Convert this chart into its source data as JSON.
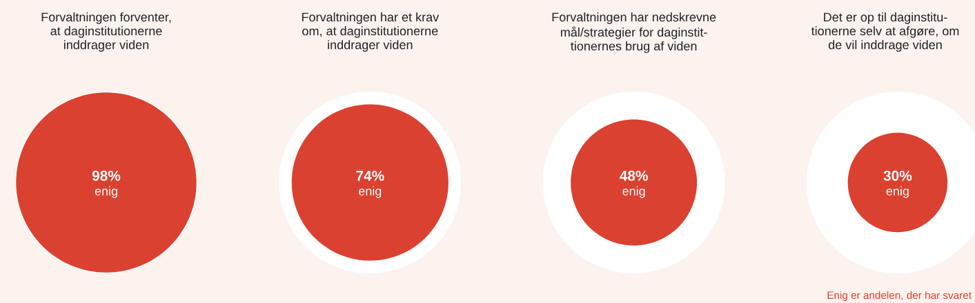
{
  "chart_data": {
    "type": "other",
    "categories": [
      "Forvaltningen forventer,\nat daginstitutionerne\ninddrager viden",
      "Forvaltningen har et krav\nom, at daginstitutionerne\ninddrager viden",
      "Forvaltningen har nedskrevne\nmål/strategier for daginstit-\ntionernes brug af viden",
      "Det er op til daginstitu-\ntionerne selv at afgøre, om\nde vil inddrage viden"
    ],
    "color": "#db4130",
    "values": [
      98,
      74,
      48,
      30
    ],
    "value_labels": [
      "98%",
      "74%",
      "48%",
      "30%"
    ],
    "annotations": [
      {
        "text": "enig",
        "x": "Forvaltningen forventer,\nat daginstitutionerne\ninddrager viden"
      },
      {
        "text": "enig",
        "x": "Forvaltningen har et krav\nom, at daginstitutionerne\ninddrager viden"
      },
      {
        "text": "enig",
        "x": "Forvaltningen har nedskrevne\nmål/strategier for daginstit-\ntionernes brug af viden"
      },
      {
        "text": "enig",
        "x": "Det er op til daginstitu-\ntionerne selv at afgøre, om\nde vil inddrage viden"
      },
      "Enig er andelen, der har svaret"
    ]
  }
}
